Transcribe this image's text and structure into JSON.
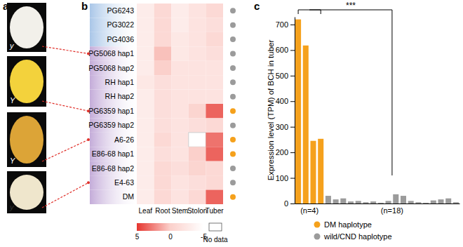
{
  "photos_panel": {
    "panel": "a",
    "photos": [
      {
        "label": "y",
        "color": "#f2f0ea",
        "row": 3
      },
      {
        "label": "Y",
        "color": "#f3d23c",
        "row": 7
      },
      {
        "label": "Y",
        "color": "#dca437",
        "row": 9
      },
      {
        "label": "y",
        "color": "#efe6cc",
        "row": 12
      }
    ]
  },
  "chart_data": [
    {
      "type": "heatmap",
      "panel": "b",
      "rows": [
        "PG6243",
        "PG3022",
        "PG4036",
        "PG5068 hap1",
        "PG5068 hap2",
        "RH hap1",
        "RH hap2",
        "PG6359 hap1",
        "PG6359 hap2",
        "A6-26",
        "E86-68 hap1",
        "E86-68 hap2",
        "E4-63",
        "DM"
      ],
      "columns": [
        "Leaf",
        "Root",
        "Stem",
        "Stolon",
        "Tuber"
      ],
      "cells": [
        [
          -3,
          -1,
          -3,
          -2,
          -1
        ],
        [
          -3,
          -1,
          -3,
          -2,
          -1.5
        ],
        [
          -3,
          -1,
          -2.5,
          -2,
          -1
        ],
        [
          -3,
          0.5,
          -2.5,
          -2,
          -1.5
        ],
        [
          -3,
          0,
          -2,
          -2,
          -2
        ],
        [
          -2.5,
          -1.5,
          -2,
          -2,
          -2
        ],
        [
          -3,
          -1.5,
          -2,
          -2,
          -2
        ],
        [
          -3,
          -1.5,
          -2,
          -0.5,
          3.5
        ],
        [
          -3,
          -1.5,
          -2,
          -1.5,
          -1
        ],
        [
          -3,
          -1,
          -2,
          null,
          3
        ],
        [
          -3,
          -1.5,
          -2,
          0,
          3.5
        ],
        [
          -3,
          -1,
          -1.5,
          -0.5,
          -1
        ],
        [
          -3,
          -1,
          -2,
          -1.5,
          -1
        ],
        [
          -3,
          -1,
          -2,
          -1,
          3.5
        ]
      ],
      "colors": [
        "#9b9b9b",
        "#9b9b9b",
        "#9b9b9b",
        "#9b9b9b",
        "#9b9b9b",
        "#9b9b9b",
        "#9b9b9b",
        "#f5a11c",
        "#9b9b9b",
        "#f5a11c",
        "#f5a11c",
        "#9b9b9b",
        "#9b9b9b",
        "#f5a11c"
      ],
      "colorbar": {
        "range": [
          5,
          -5
        ],
        "ticks": [
          5,
          0,
          -5
        ],
        "no_data_label": "No data"
      }
    },
    {
      "type": "bar",
      "panel": "c",
      "y_label": "Expression level (TPM) of BCH in tuber",
      "categories": [
        null,
        null,
        null,
        null,
        null,
        null,
        null,
        null,
        null,
        null,
        null,
        null,
        null,
        null,
        null,
        null,
        null,
        null,
        null,
        null,
        null,
        null
      ],
      "series": [
        {
          "name": "DM haplotype",
          "color": "#f5a11c",
          "values": [
            720,
            618,
            245,
            253,
            null,
            null,
            null,
            null,
            null,
            null,
            null,
            null,
            null,
            null,
            null,
            null,
            null,
            null,
            null,
            null,
            null,
            null
          ]
        },
        {
          "name": "wild/CND haplotype",
          "color": "#9b9b9b",
          "values": [
            null,
            null,
            null,
            null,
            30,
            16,
            20,
            8,
            10,
            5,
            8,
            3,
            10,
            36,
            30,
            10,
            5,
            3,
            12,
            16,
            20,
            5
          ]
        }
      ],
      "ylim": [
        0,
        730
      ],
      "yticks": [
        0,
        100,
        200,
        300,
        400,
        500,
        600,
        700
      ],
      "tick_labels": "y",
      "legend": "bottom",
      "annotations": {
        "significance": "***",
        "group_sizes": [
          "(n=4)",
          "(n=18)"
        ]
      }
    }
  ]
}
